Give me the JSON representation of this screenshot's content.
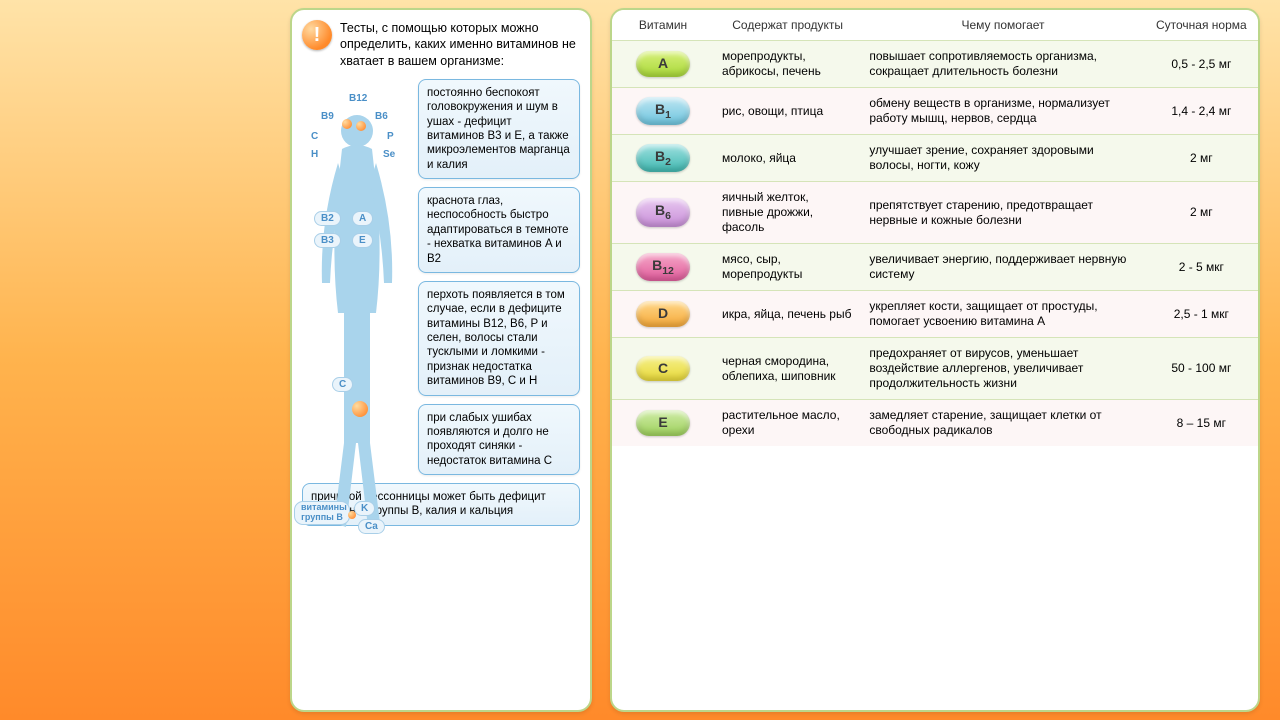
{
  "left": {
    "intro": "Тесты, с помощью которых можно определить, каких именно витаминов не хватает в вашем организме:",
    "callouts": [
      "постоянно беспокоят головокружения и шум в ушах - дефицит витаминов B3 и E, а также микроэлементов марганца и калия",
      "краснота глаз, неспособность быстро адаптироваться в темноте - нехватка витаминов A и B2",
      "перхоть появляется в том случае, если в дефиците витамины B12, B6, P и селен, волосы стали тусклыми и ломкими - признак недостатка витаминов B9, C и H",
      "при слабых ушибах появляются и долго не проходят синяки - недостаток витамина C"
    ],
    "callout_wide": "причиной бессонницы может быть дефицит витаминов группы B, калия и кальция",
    "body_labels": [
      "B12",
      "B9",
      "B6",
      "C",
      "P",
      "H",
      "Se",
      "B2",
      "A",
      "B3",
      "E",
      "C",
      "K",
      "Ca"
    ],
    "body_label_group": "витамины группы B"
  },
  "table": {
    "headers": [
      "Витамин",
      "Содержат продукты",
      "Чему помогает",
      "Суточная норма"
    ],
    "rows": [
      {
        "name": "A",
        "name_html": "A",
        "prod": "морепродукты, абрикосы, печень",
        "help": "повышает сопротивляемость организма, сокращает длительность болезни",
        "dose": "0,5 - 2,5 мг",
        "pill_bg": "linear-gradient(to bottom,#d7f07a,#a8d838)",
        "alt": true
      },
      {
        "name": "B1",
        "name_html": "B<sub>1</sub>",
        "prod": "рис, овощи, птица",
        "help": "обмену веществ в организме, нормализует работу мышц, нервов, сердца",
        "dose": "1,4 - 2,4 мг",
        "pill_bg": "linear-gradient(to bottom,#bfe6f2,#6cc4de)",
        "alt": false
      },
      {
        "name": "B2",
        "name_html": "B<sub>2</sub>",
        "prod": "молоко, яйца",
        "help": "улучшает зрение, сохраняет здоровыми волосы, ногти, кожу",
        "dose": "2 мг",
        "pill_bg": "linear-gradient(to bottom,#9fe0e0,#3fb8b0)",
        "alt": true
      },
      {
        "name": "B6",
        "name_html": "B<sub>6</sub>",
        "prod": "яичный желток, пивные дрожжи, фасоль",
        "help": "препятствует старению, предотвращает нервные и кожные болезни",
        "dose": "2 мг",
        "pill_bg": "linear-gradient(to bottom,#e8c8f0,#c88ed8)",
        "alt": false
      },
      {
        "name": "B12",
        "name_html": "B<sub>12</sub>",
        "prod": "мясо, сыр, морепродукты",
        "help": "увеличивает энергию, поддерживает нервную систему",
        "dose": "2 - 5 мкг",
        "pill_bg": "linear-gradient(to bottom,#f5a8c8,#e05a9a)",
        "alt": true
      },
      {
        "name": "D",
        "name_html": "D",
        "prod": "икра, яйца, печень рыб",
        "help": "укрепляет кости, защищает от простуды, помогает усвоению витамина A",
        "dose": "2,5 - 1 мкг",
        "pill_bg": "linear-gradient(to bottom,#ffd88a,#f5a838)",
        "alt": false
      },
      {
        "name": "C",
        "name_html": "C",
        "prod": "черная смородина, облепиха, шиповник",
        "help": "предохраняет от вирусов, уменьшает воздействие аллергенов, увеличивает продолжительность жизни",
        "dose": "50 - 100 мг",
        "pill_bg": "linear-gradient(to bottom,#f5f08a,#e8d838)",
        "alt": true
      },
      {
        "name": "E",
        "name_html": "E",
        "prod": "растительное масло, орехи",
        "help": "замедляет старение, защищает клетки от свободных радикалов",
        "dose": "8 – 15 мг",
        "pill_bg": "linear-gradient(to bottom,#d0eca8,#9dd05a)",
        "alt": false
      }
    ]
  }
}
